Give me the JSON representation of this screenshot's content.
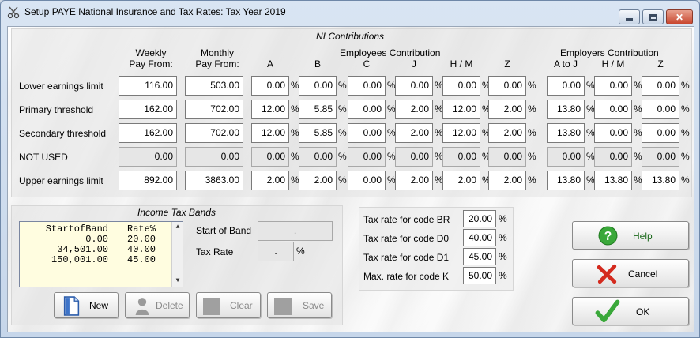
{
  "window": {
    "title": "Setup PAYE National Insurance and Tax Rates: Tax Year 2019",
    "title_icon": "scissors-icon",
    "controls": {
      "minimize": "minimize-icon",
      "maximize": "maximize-icon",
      "close": "close-icon"
    }
  },
  "ni": {
    "section_title": "NI Contributions",
    "weekly_header": [
      "Weekly",
      "Pay From:"
    ],
    "monthly_header": [
      "Monthly",
      "Pay From:"
    ],
    "employees_header": "Employees Contribution",
    "employers_header": "Employers Contribution",
    "employee_cols": [
      "A",
      "B",
      "C",
      "J",
      "H / M",
      "Z"
    ],
    "employer_cols": [
      "A to J",
      "H / M",
      "Z"
    ],
    "percent_sign": "%",
    "rows": [
      {
        "label": "Lower earnings limit",
        "weekly": "116.00",
        "monthly": "503.00",
        "employees": [
          "0.00",
          "0.00",
          "0.00",
          "0.00",
          "0.00",
          "0.00"
        ],
        "employers": [
          "0.00",
          "0.00",
          "0.00"
        ]
      },
      {
        "label": "Primary threshold",
        "weekly": "162.00",
        "monthly": "702.00",
        "employees": [
          "12.00",
          "5.85",
          "0.00",
          "2.00",
          "12.00",
          "2.00"
        ],
        "employers": [
          "13.80",
          "0.00",
          "0.00"
        ]
      },
      {
        "label": "Secondary threshold",
        "weekly": "162.00",
        "monthly": "702.00",
        "employees": [
          "12.00",
          "5.85",
          "0.00",
          "2.00",
          "12.00",
          "2.00"
        ],
        "employers": [
          "13.80",
          "0.00",
          "0.00"
        ]
      },
      {
        "label": "NOT USED",
        "weekly": "0.00",
        "monthly": "0.00",
        "employees": [
          "0.00",
          "0.00",
          "0.00",
          "0.00",
          "0.00",
          "0.00"
        ],
        "employers": [
          "0.00",
          "0.00",
          "0.00"
        ]
      },
      {
        "label": "Upper earnings limit",
        "weekly": "892.00",
        "monthly": "3863.00",
        "employees": [
          "2.00",
          "2.00",
          "0.00",
          "2.00",
          "2.00",
          "2.00"
        ],
        "employers": [
          "13.80",
          "13.80",
          "13.80"
        ]
      }
    ]
  },
  "income_tax": {
    "section_title": "Income Tax Bands",
    "list_headers": [
      "StartofBand",
      "Rate%"
    ],
    "bands": [
      {
        "start": "0.00",
        "rate": "20.00"
      },
      {
        "start": "34,501.00",
        "rate": "40.00"
      },
      {
        "start": "150,001.00",
        "rate": "45.00"
      }
    ],
    "start_of_band_label": "Start of Band",
    "start_of_band_value": ".",
    "tax_rate_label": "Tax Rate",
    "tax_rate_value": ".",
    "percent_sign": "%"
  },
  "rates": [
    {
      "label": "Tax rate for code BR",
      "value": "20.00"
    },
    {
      "label": "Tax rate for code D0",
      "value": "40.00"
    },
    {
      "label": "Tax rate for code D1",
      "value": "45.00"
    },
    {
      "label": "Max. rate for code K",
      "value": "50.00"
    }
  ],
  "buttons": {
    "new": "New",
    "delete": "Delete",
    "clear": "Clear",
    "save": "Save",
    "help": "Help",
    "cancel": "Cancel",
    "ok": "OK",
    "new_icon": "document-icon",
    "delete_icon": "user-icon",
    "help_icon": "question-icon",
    "cancel_icon": "red-x-icon",
    "ok_icon": "checkmark-icon"
  }
}
